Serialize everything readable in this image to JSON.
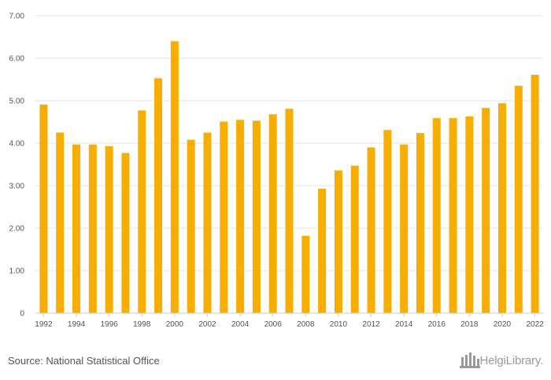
{
  "chart_data": {
    "type": "bar",
    "categories": [
      "1992",
      "1993",
      "1994",
      "1995",
      "1996",
      "1997",
      "1998",
      "1999",
      "2000",
      "2001",
      "2002",
      "2003",
      "2004",
      "2005",
      "2006",
      "2007",
      "2008",
      "2009",
      "2010",
      "2011",
      "2012",
      "2013",
      "2014",
      "2015",
      "2016",
      "2017",
      "2018",
      "2019",
      "2020",
      "2021",
      "2022"
    ],
    "values": [
      4.91,
      4.25,
      3.97,
      3.97,
      3.93,
      3.77,
      4.77,
      5.53,
      6.4,
      4.08,
      4.25,
      4.51,
      4.55,
      4.53,
      4.68,
      4.81,
      1.82,
      2.93,
      3.36,
      3.47,
      3.9,
      4.31,
      3.97,
      4.24,
      4.59,
      4.59,
      4.63,
      4.83,
      4.94,
      5.35,
      5.61
    ],
    "x_tick_labels": [
      "1992",
      "1994",
      "1996",
      "1998",
      "2000",
      "2002",
      "2004",
      "2006",
      "2008",
      "2010",
      "2012",
      "2014",
      "2016",
      "2018",
      "2020",
      "2022"
    ],
    "y_tick_labels": [
      "0",
      "1.00",
      "2.00",
      "3.00",
      "4.00",
      "5.00",
      "6.00",
      "7.00"
    ],
    "ylim": [
      0,
      7
    ],
    "grid": true,
    "bar_color": "#f7ae00",
    "title": "",
    "xlabel": "",
    "ylabel": ""
  },
  "footer": {
    "source": "Source: National Statistical Office",
    "logo": "HelgiLibrary."
  },
  "colors": {
    "grid": "#e6e6e6",
    "axis": "#cccccc",
    "text": "#555555",
    "logo": "#9a9a9a"
  }
}
